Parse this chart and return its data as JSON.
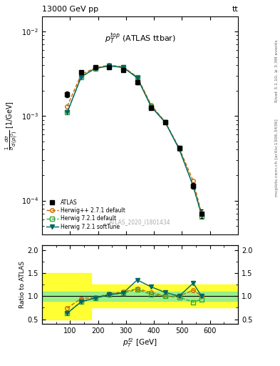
{
  "title_top": "13000 GeV pp",
  "title_right": "tt",
  "plot_title": "$p_T^{top}$ (ATLAS ttbar)",
  "watermark": "ATLAS_2020_I1801434",
  "right_label": "mcplots.cern.ch [arXiv:1306.3436]",
  "right_label2": "Rivet 3.1.10, ≥ 3.3M events",
  "xlabel": "$p_T^{t2}$ [GeV]",
  "ylabel": "$\\frac{1}{\\sigma}\\frac{d\\sigma}{d\\,(p_T^{t2})}$ [1/GeV]",
  "ratio_ylabel": "Ratio to ATLAS",
  "atlas_x": [
    90,
    140,
    190,
    240,
    290,
    340,
    390,
    440,
    490,
    540,
    570
  ],
  "atlas_y": [
    0.0018,
    0.0033,
    0.0038,
    0.0038,
    0.0035,
    0.0025,
    0.00125,
    0.00085,
    0.00042,
    0.00015,
    7e-05
  ],
  "atlas_yerr": [
    0.00015,
    0.00015,
    0.00015,
    0.00015,
    0.00015,
    0.00012,
    6e-05,
    4e-05,
    2e-05,
    1.2e-05,
    8e-06
  ],
  "hw_x": [
    90,
    140,
    190,
    240,
    290,
    340,
    390,
    440,
    490,
    540,
    570
  ],
  "hwpp_y": [
    0.0013,
    0.0031,
    0.0037,
    0.004,
    0.0038,
    0.0029,
    0.00135,
    0.00085,
    0.00042,
    0.00017,
    7e-05
  ],
  "hw721_y": [
    0.0011,
    0.0029,
    0.00365,
    0.0039,
    0.00375,
    0.00285,
    0.0013,
    0.00085,
    0.00041,
    0.00015,
    6.5e-05
  ],
  "hw721s_y": [
    0.0011,
    0.0029,
    0.00365,
    0.0039,
    0.00375,
    0.00282,
    0.00128,
    0.00084,
    0.000405,
    0.000148,
    6.8e-05
  ],
  "ratio_hwpp": [
    0.74,
    0.95,
    0.97,
    1.05,
    1.09,
    1.16,
    1.08,
    1.0,
    1.0,
    1.13,
    1.0
  ],
  "ratio_hw721": [
    0.63,
    0.88,
    0.96,
    1.03,
    1.07,
    1.14,
    1.04,
    1.0,
    0.98,
    0.87,
    0.93
  ],
  "ratio_hw721s": [
    0.63,
    0.88,
    0.96,
    1.03,
    1.07,
    1.35,
    1.2,
    1.08,
    1.0,
    1.28,
    1.0
  ],
  "band_x_edges": [
    0,
    125,
    175,
    225,
    275,
    325,
    375,
    425,
    475,
    600,
    700
  ],
  "band_green_lo": [
    0.9,
    0.9,
    0.9,
    0.9,
    0.9,
    0.9,
    0.9,
    0.9,
    0.9,
    0.9,
    0.9
  ],
  "band_green_hi": [
    1.1,
    1.1,
    1.1,
    1.1,
    1.1,
    1.1,
    1.1,
    1.1,
    1.1,
    1.1,
    1.1
  ],
  "band_yellow_lo": [
    0.5,
    0.5,
    0.75,
    0.75,
    0.75,
    0.75,
    0.75,
    0.75,
    0.75,
    0.75,
    0.75
  ],
  "band_yellow_hi": [
    1.5,
    1.5,
    1.25,
    1.25,
    1.25,
    1.25,
    1.25,
    1.25,
    1.25,
    1.25,
    1.25
  ],
  "color_hwpp": "#cc6600",
  "color_hw721": "#33aa33",
  "color_hw721s": "#006666",
  "xlim": [
    0,
    700
  ],
  "ylim_main": [
    4e-05,
    0.015
  ],
  "ylim_ratio": [
    0.4,
    2.1
  ],
  "ratio_yticks": [
    0.5,
    1.0,
    1.5,
    2.0
  ]
}
